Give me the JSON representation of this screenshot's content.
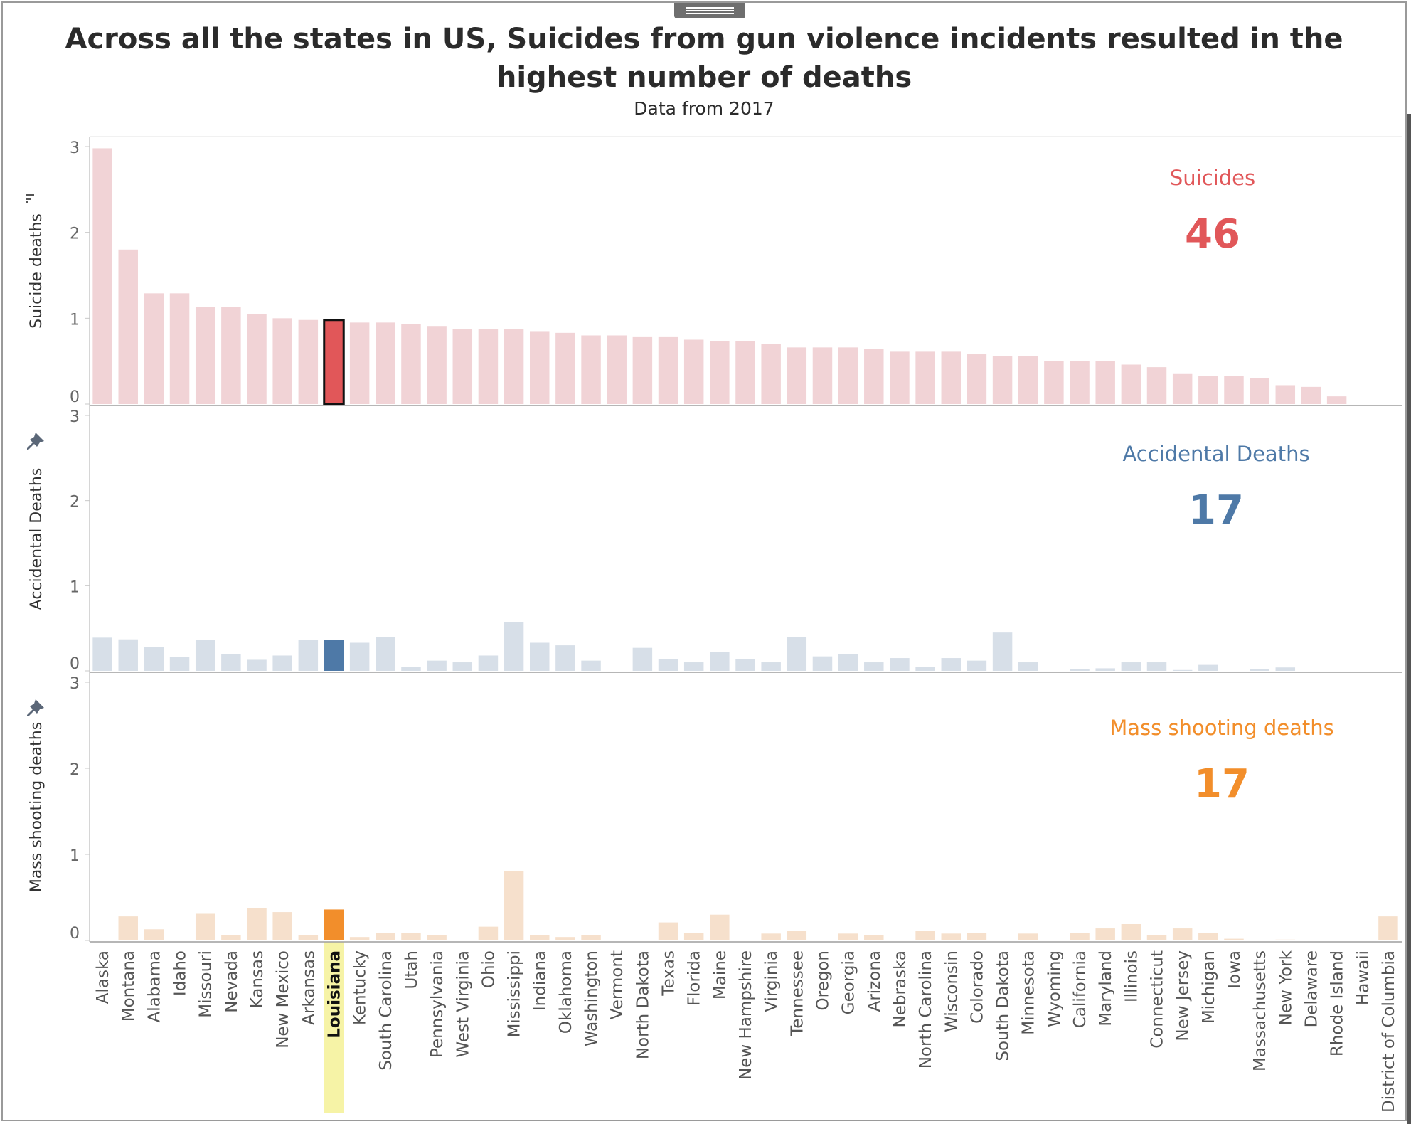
{
  "title": "Across all the states in US, Suicides from gun violence incidents resulted in the highest number of deaths",
  "subtitle": "Data from 2017",
  "selected_state": "Louisiana",
  "icons": {
    "sort": "sort-descending-icon",
    "pin": "pin-icon",
    "handle": "drag-handle-icon"
  },
  "colors": {
    "suicides": "#e15759",
    "suicides_dim": "#f1d3d6",
    "accidental": "#4e79a7",
    "accidental_dim": "#d7dfe8",
    "mass": "#f28e2b",
    "mass_dim": "#f6e0cc",
    "highlight": "#f6f3a6"
  },
  "chart_data": {
    "type": "bar",
    "categories": [
      "Alaska",
      "Montana",
      "Alabama",
      "Idaho",
      "Missouri",
      "Nevada",
      "Kansas",
      "New Mexico",
      "Arkansas",
      "Louisiana",
      "Kentucky",
      "South Carolina",
      "Utah",
      "Pennsylvania",
      "West Virginia",
      "Ohio",
      "Mississippi",
      "Indiana",
      "Oklahoma",
      "Washington",
      "Vermont",
      "North Dakota",
      "Texas",
      "Florida",
      "Maine",
      "New Hampshire",
      "Virginia",
      "Tennessee",
      "Oregon",
      "Georgia",
      "Arizona",
      "Nebraska",
      "North Carolina",
      "Wisconsin",
      "Colorado",
      "South Dakota",
      "Minnesota",
      "Wyoming",
      "California",
      "Maryland",
      "Illinois",
      "Connecticut",
      "New Jersey",
      "Michigan",
      "Iowa",
      "Massachusetts",
      "New York",
      "Delaware",
      "Rhode Island",
      "Hawaii",
      "District of Columbia"
    ],
    "ylim": [
      0,
      3
    ],
    "yticks": [
      "3",
      "2",
      "1",
      "0"
    ],
    "panels": [
      {
        "name": "Suicides",
        "ylabel": "Suicide deaths",
        "total": "46",
        "values": [
          2.98,
          1.8,
          1.29,
          1.29,
          1.13,
          1.13,
          1.05,
          1.0,
          0.98,
          0.98,
          0.95,
          0.95,
          0.93,
          0.91,
          0.87,
          0.87,
          0.87,
          0.85,
          0.83,
          0.8,
          0.8,
          0.78,
          0.78,
          0.75,
          0.73,
          0.73,
          0.7,
          0.66,
          0.66,
          0.66,
          0.64,
          0.61,
          0.61,
          0.61,
          0.58,
          0.56,
          0.56,
          0.5,
          0.5,
          0.5,
          0.46,
          0.43,
          0.35,
          0.33,
          0.33,
          0.3,
          0.22,
          0.2,
          0.09,
          0,
          0
        ]
      },
      {
        "name": "Accidental Deaths",
        "ylabel": "Accidental Deaths",
        "total": "17",
        "values": [
          0.39,
          0.37,
          0.28,
          0.16,
          0.36,
          0.2,
          0.13,
          0.18,
          0.36,
          0.36,
          0.33,
          0.4,
          0.05,
          0.12,
          0.1,
          0.18,
          0.57,
          0.33,
          0.3,
          0.12,
          0,
          0.27,
          0.14,
          0.1,
          0.22,
          0.14,
          0.1,
          0.4,
          0.17,
          0.2,
          0.1,
          0.15,
          0.05,
          0.15,
          0.12,
          0.45,
          0.1,
          0,
          0.02,
          0.03,
          0.1,
          0.1,
          0.01,
          0.07,
          0,
          0.02,
          0.04,
          0,
          0,
          0,
          0
        ]
      },
      {
        "name": "Mass shooting deaths",
        "ylabel": "Mass shooting deaths",
        "total": "17",
        "values": [
          0,
          0.28,
          0.13,
          0,
          0.31,
          0.06,
          0.38,
          0.33,
          0.06,
          0.36,
          0.04,
          0.09,
          0.09,
          0.06,
          0,
          0.16,
          0.81,
          0.06,
          0.04,
          0.06,
          0,
          0,
          0.21,
          0.09,
          0.3,
          0,
          0.08,
          0.11,
          0,
          0.08,
          0.06,
          0,
          0.11,
          0.08,
          0.09,
          0,
          0.08,
          0,
          0.09,
          0.14,
          0.19,
          0.06,
          0.14,
          0.09,
          0.02,
          0,
          0.01,
          0,
          0,
          0,
          0.28
        ]
      }
    ],
    "grid": false,
    "legend": "none"
  }
}
